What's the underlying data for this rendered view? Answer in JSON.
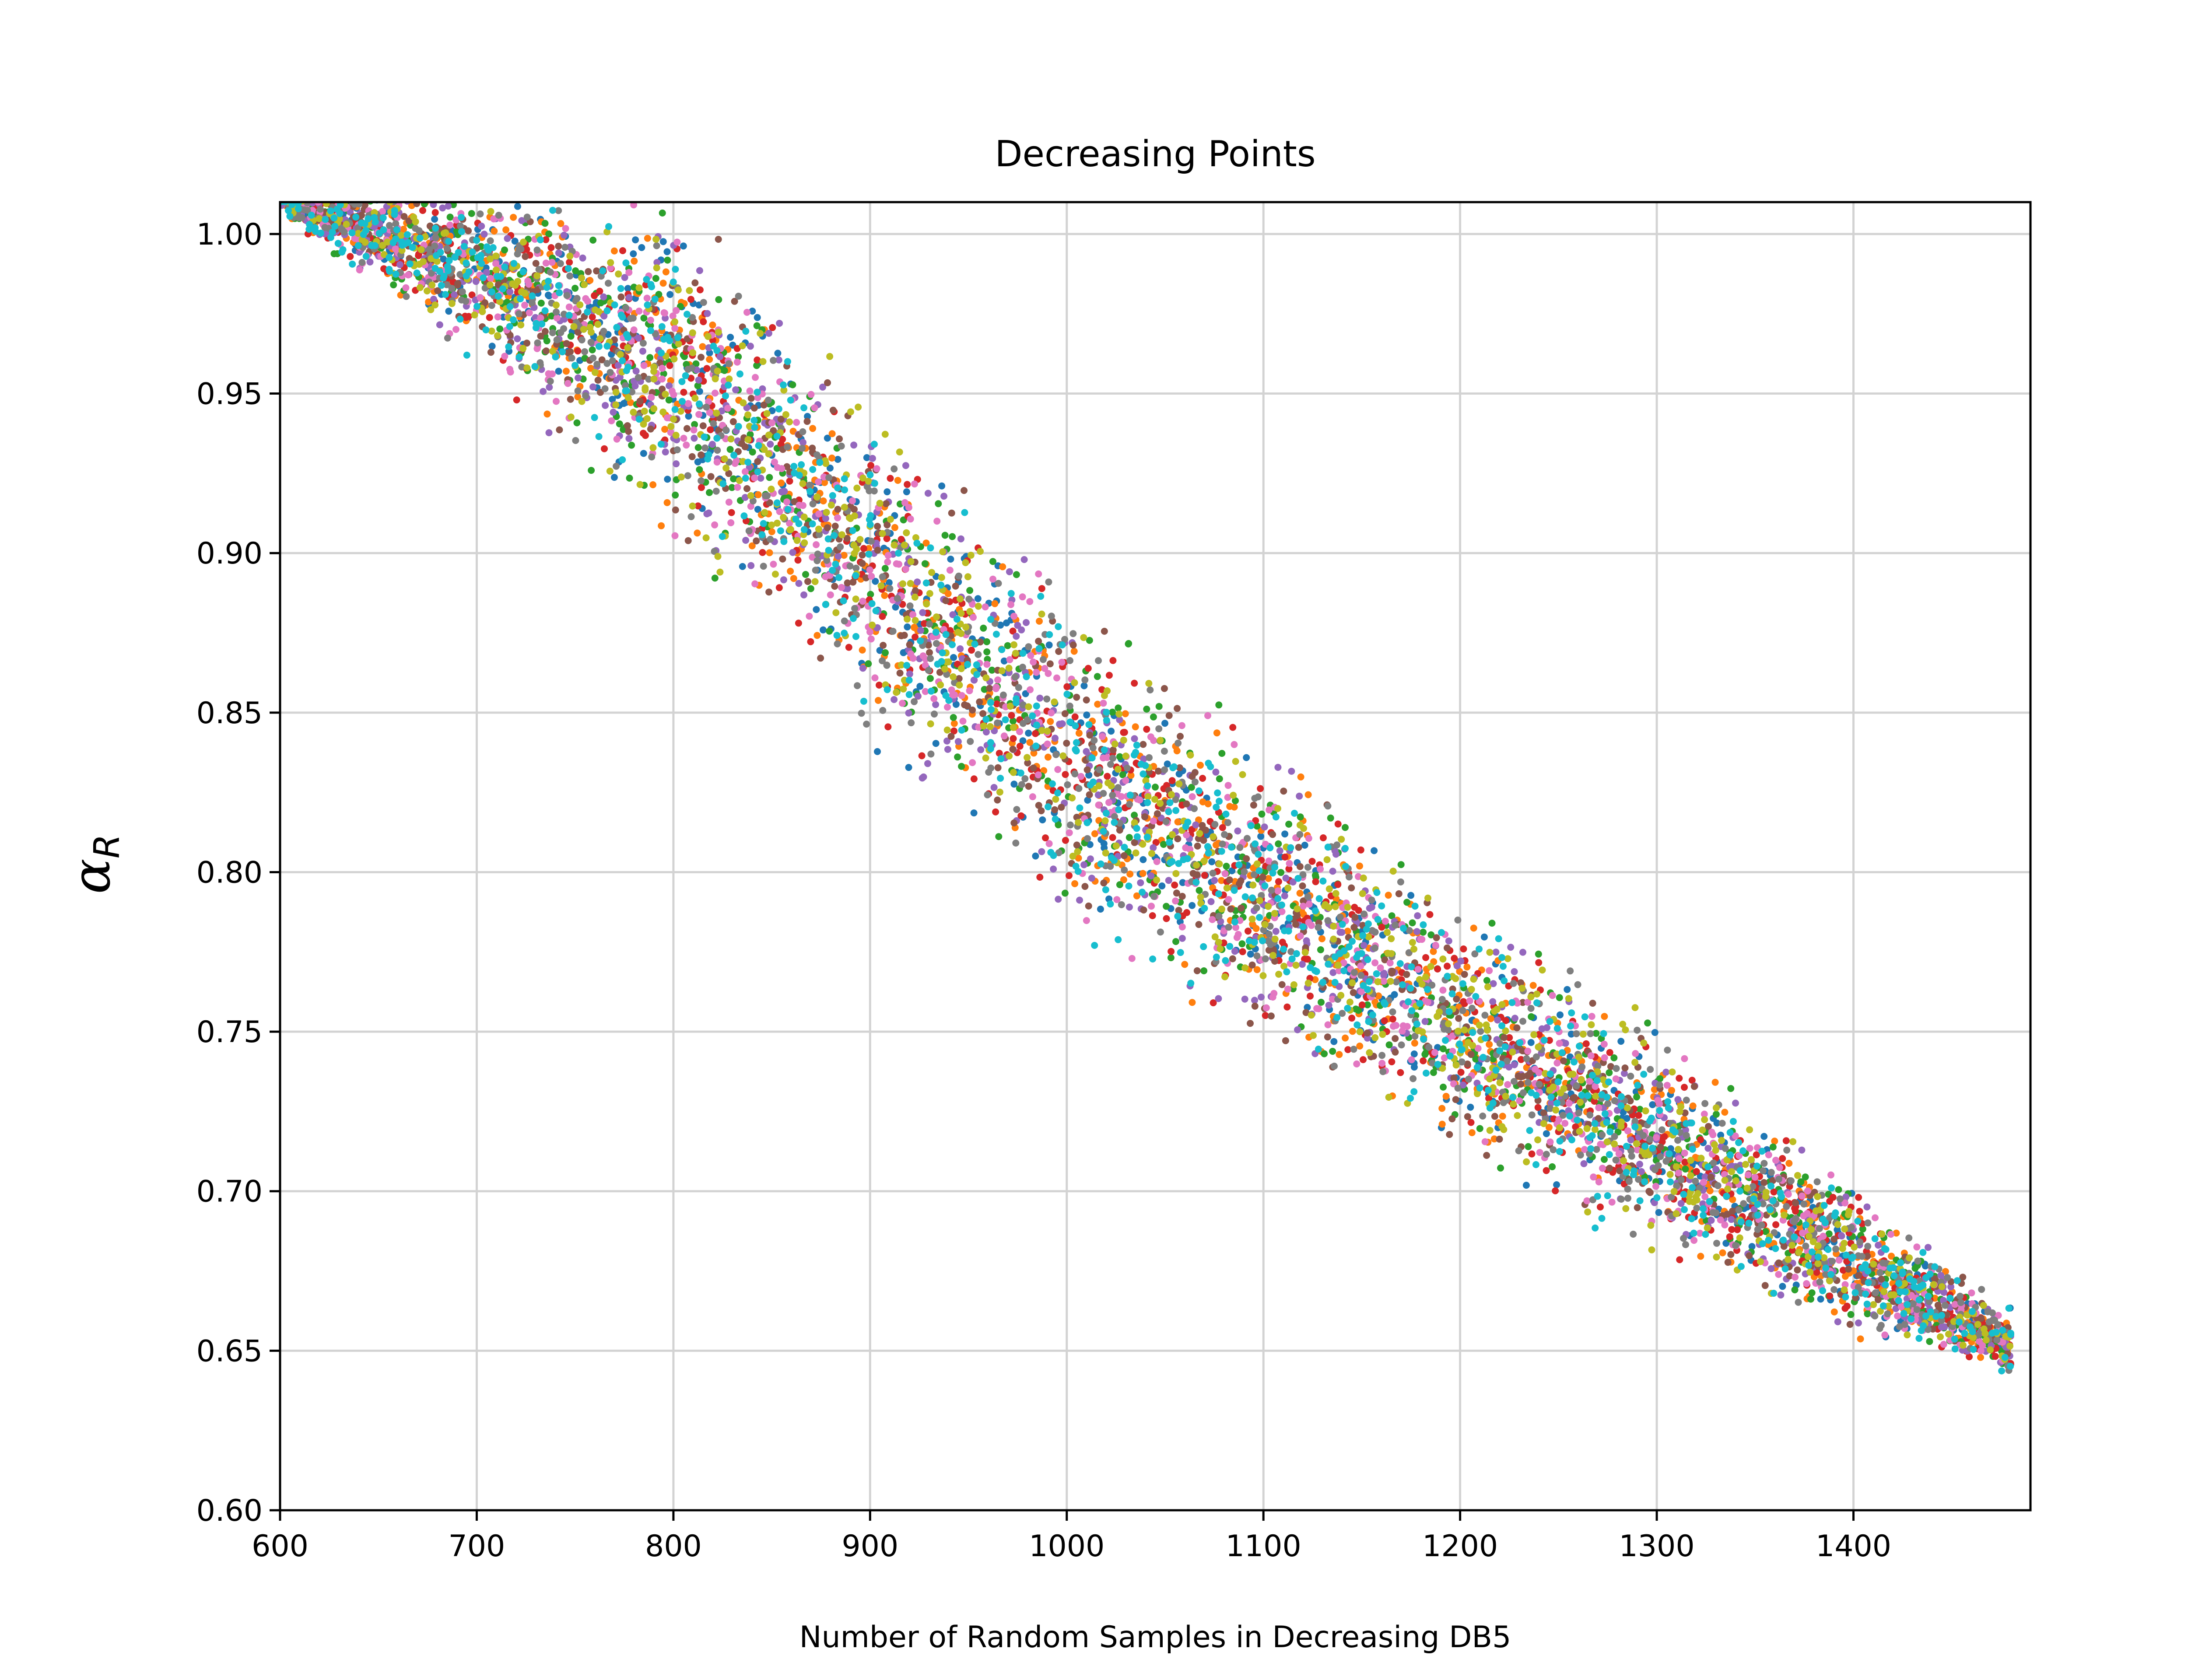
{
  "chart_data": {
    "type": "scatter",
    "title": "Decreasing Points",
    "xlabel": "Number of Random Samples in Decreasing DB5",
    "ylabel_main": "α",
    "ylabel_sub": "R",
    "xlim": [
      600,
      1490
    ],
    "ylim": [
      0.6,
      1.01
    ],
    "xticks": [
      600,
      700,
      800,
      900,
      1000,
      1100,
      1200,
      1300,
      1400
    ],
    "xtick_labels": [
      "600",
      "700",
      "800",
      "900",
      "1000",
      "1100",
      "1200",
      "1300",
      "1400"
    ],
    "yticks": [
      0.6,
      0.65,
      0.7,
      0.75,
      0.8,
      0.85,
      0.9,
      0.95,
      1.0
    ],
    "ytick_labels": [
      "0.60",
      "0.65",
      "0.70",
      "0.75",
      "0.80",
      "0.85",
      "0.90",
      "0.95",
      "1.00"
    ],
    "grid": true,
    "legend": "none",
    "colors": [
      "#1f77b4",
      "#ff7f0e",
      "#2ca02c",
      "#d62728",
      "#9467bd",
      "#8c564b",
      "#e377c2",
      "#7f7f7f",
      "#bcbd22",
      "#17becf"
    ],
    "band": {
      "x": [
        600,
        700,
        800,
        900,
        1000,
        1100,
        1200,
        1300,
        1400,
        1480
      ],
      "y_upper": [
        1.02,
        1.02,
        1.02,
        0.955,
        0.895,
        0.848,
        0.8,
        0.755,
        0.705,
        0.665
      ],
      "y_lower": [
        1.005,
        0.955,
        0.895,
        0.835,
        0.78,
        0.738,
        0.705,
        0.675,
        0.65,
        0.64
      ]
    },
    "points_per_series": 700
  }
}
